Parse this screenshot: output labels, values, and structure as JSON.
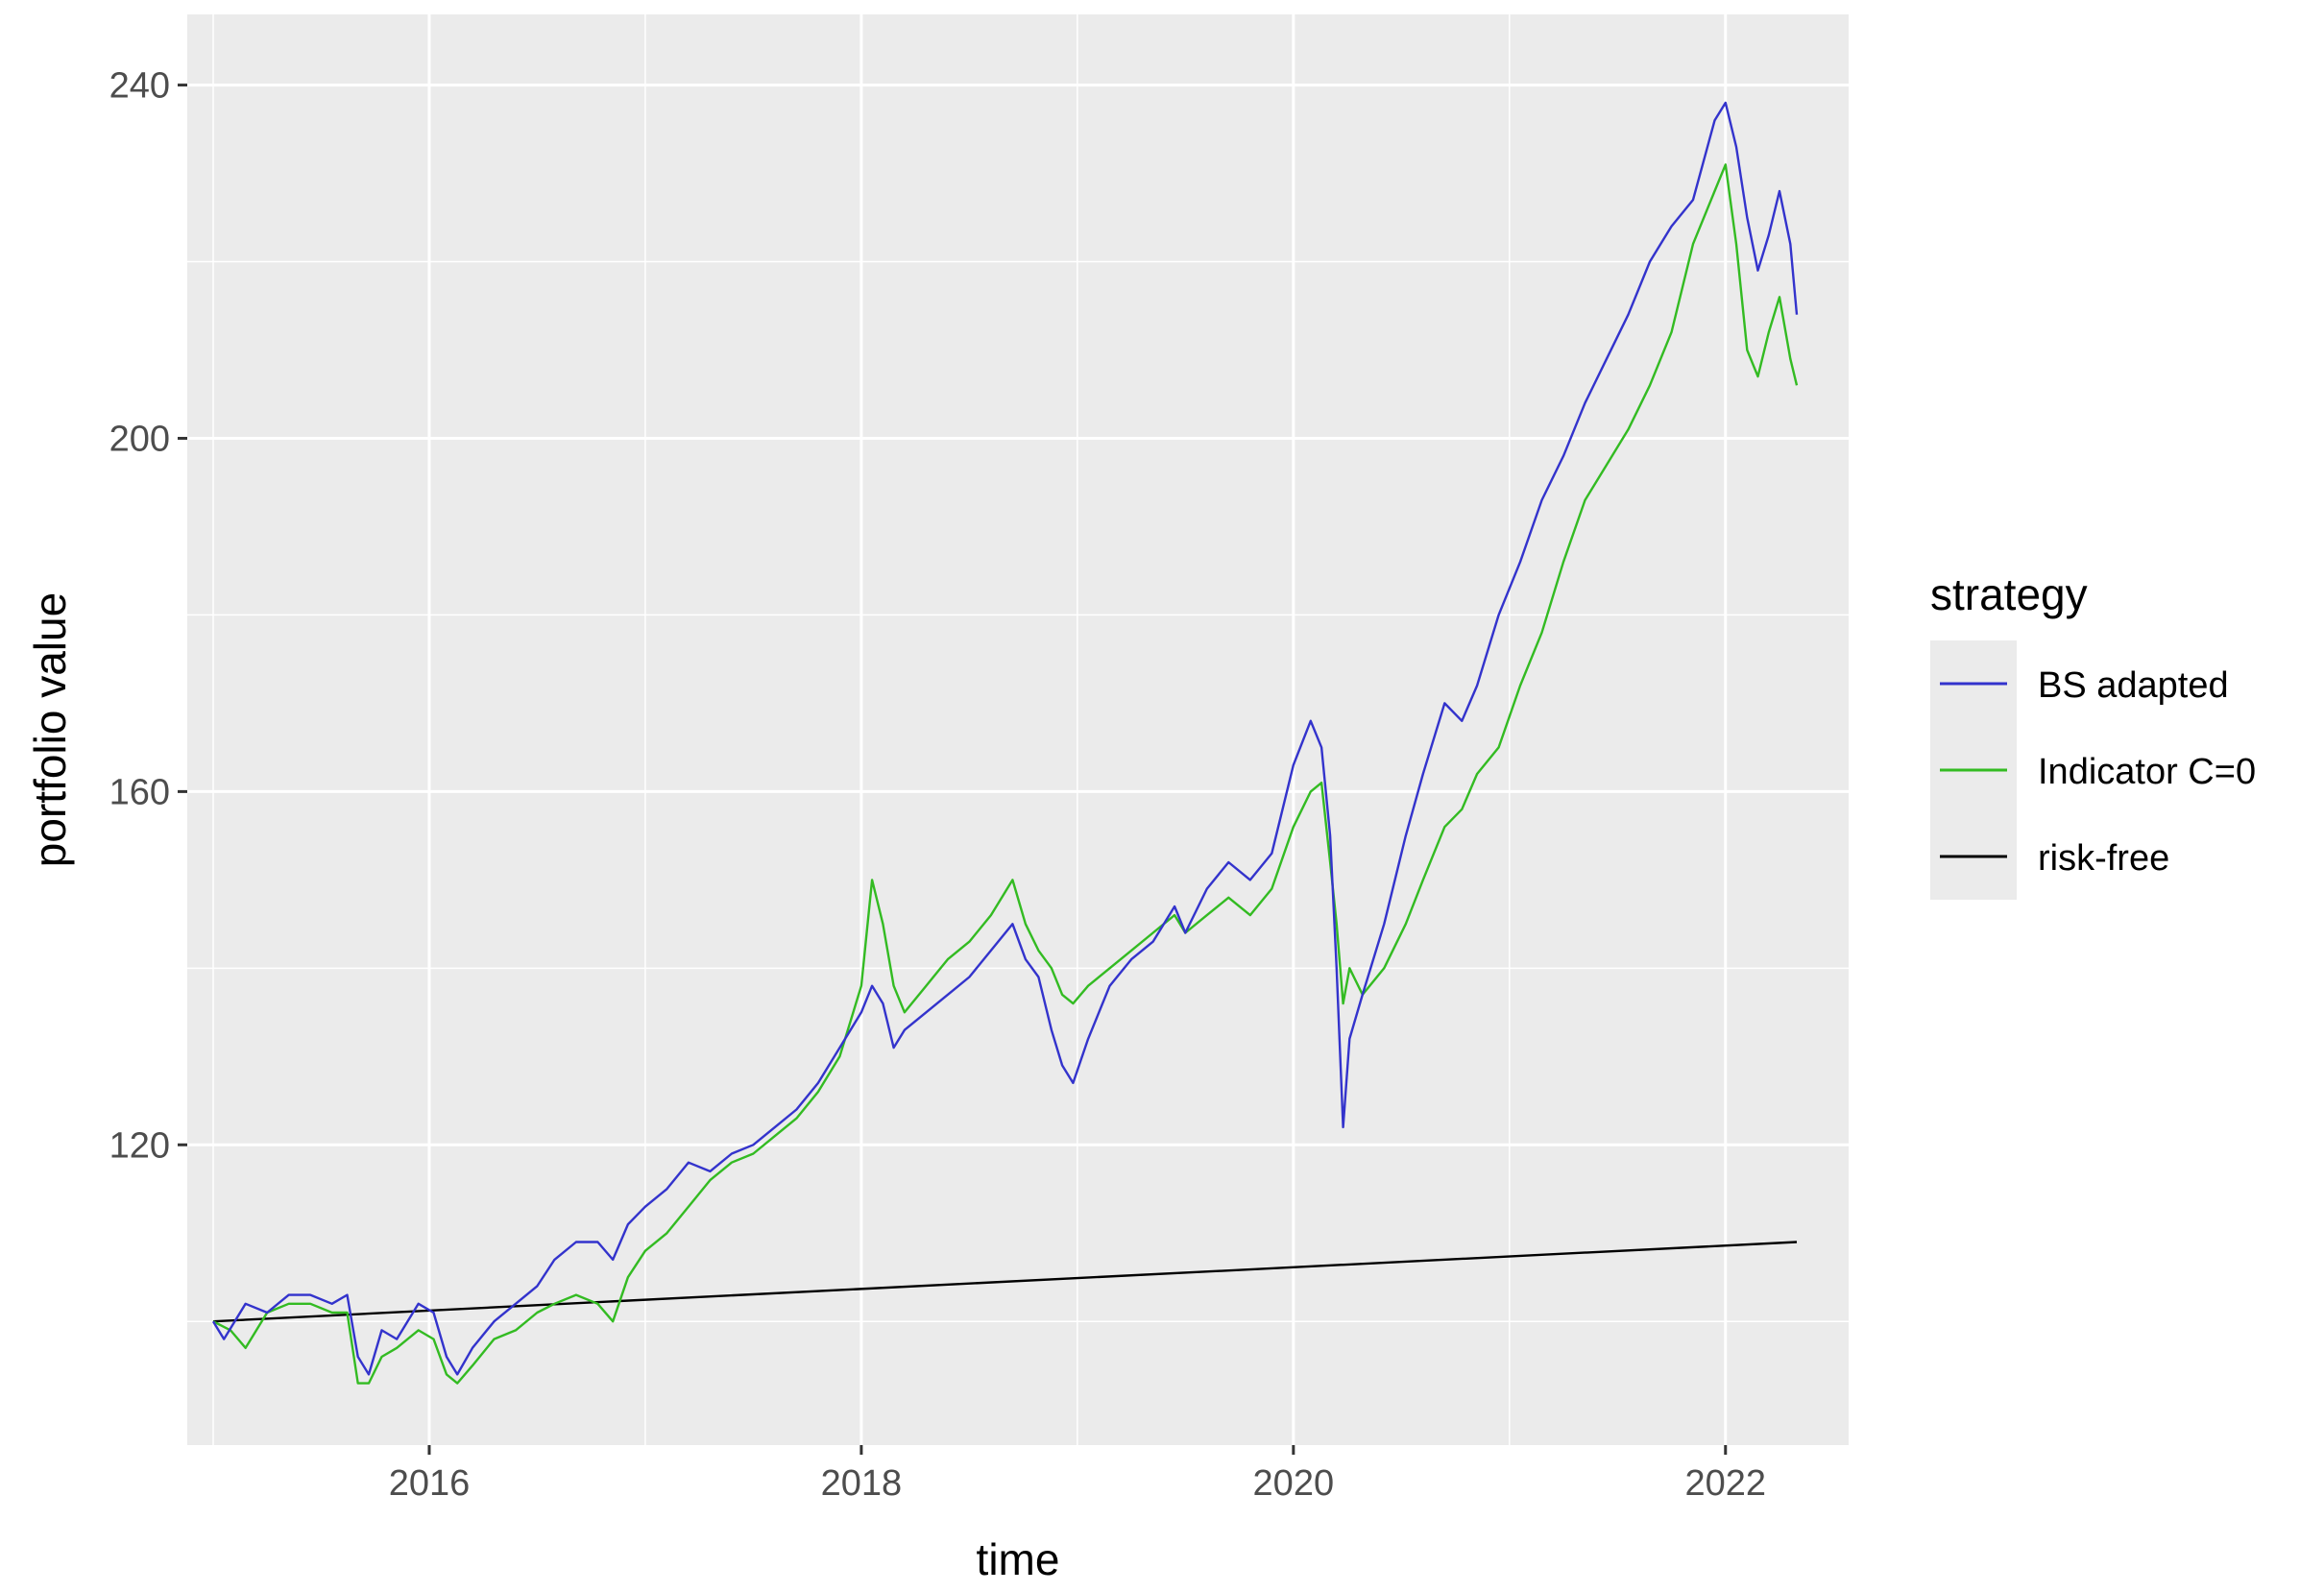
{
  "chart_data": {
    "type": "line",
    "xlabel": "time",
    "ylabel": "portfolio value",
    "xlim": [
      2014.88,
      2022.57
    ],
    "ylim": [
      86,
      248
    ],
    "x_major_ticks": [
      2016,
      2018,
      2020,
      2022
    ],
    "x_tick_labels": [
      "2016",
      "2018",
      "2020",
      "2022"
    ],
    "x_minor_ticks": [
      2015,
      2017,
      2019,
      2021
    ],
    "y_major_ticks": [
      120,
      160,
      200,
      240
    ],
    "y_tick_labels": [
      "120",
      "160",
      "200",
      "240"
    ],
    "y_minor_ticks": [
      100,
      140,
      180,
      220
    ],
    "grid": true,
    "legend": {
      "title": "strategy",
      "position": "right"
    },
    "series": [
      {
        "name": "BS adapted",
        "color": "#3333cc",
        "points": [
          [
            2015.0,
            100
          ],
          [
            2015.05,
            98
          ],
          [
            2015.15,
            102
          ],
          [
            2015.25,
            101
          ],
          [
            2015.35,
            103
          ],
          [
            2015.45,
            103
          ],
          [
            2015.55,
            102
          ],
          [
            2015.62,
            103
          ],
          [
            2015.67,
            96
          ],
          [
            2015.72,
            94
          ],
          [
            2015.78,
            99
          ],
          [
            2015.85,
            98
          ],
          [
            2015.95,
            102
          ],
          [
            2016.02,
            101
          ],
          [
            2016.08,
            96
          ],
          [
            2016.13,
            94
          ],
          [
            2016.2,
            97
          ],
          [
            2016.3,
            100
          ],
          [
            2016.4,
            102
          ],
          [
            2016.5,
            104
          ],
          [
            2016.58,
            107
          ],
          [
            2016.68,
            109
          ],
          [
            2016.78,
            109
          ],
          [
            2016.85,
            107
          ],
          [
            2016.92,
            111
          ],
          [
            2017.0,
            113
          ],
          [
            2017.1,
            115
          ],
          [
            2017.2,
            118
          ],
          [
            2017.3,
            117
          ],
          [
            2017.4,
            119
          ],
          [
            2017.5,
            120
          ],
          [
            2017.6,
            122
          ],
          [
            2017.7,
            124
          ],
          [
            2017.8,
            127
          ],
          [
            2017.9,
            131
          ],
          [
            2018.0,
            135
          ],
          [
            2018.05,
            138
          ],
          [
            2018.1,
            136
          ],
          [
            2018.15,
            131
          ],
          [
            2018.2,
            133
          ],
          [
            2018.3,
            135
          ],
          [
            2018.4,
            137
          ],
          [
            2018.5,
            139
          ],
          [
            2018.6,
            142
          ],
          [
            2018.7,
            145
          ],
          [
            2018.76,
            141
          ],
          [
            2018.82,
            139
          ],
          [
            2018.88,
            133
          ],
          [
            2018.93,
            129
          ],
          [
            2018.98,
            127
          ],
          [
            2019.05,
            132
          ],
          [
            2019.15,
            138
          ],
          [
            2019.25,
            141
          ],
          [
            2019.35,
            143
          ],
          [
            2019.45,
            147
          ],
          [
            2019.5,
            144
          ],
          [
            2019.6,
            149
          ],
          [
            2019.7,
            152
          ],
          [
            2019.8,
            150
          ],
          [
            2019.9,
            153
          ],
          [
            2020.0,
            163
          ],
          [
            2020.08,
            168
          ],
          [
            2020.13,
            165
          ],
          [
            2020.17,
            155
          ],
          [
            2020.2,
            140
          ],
          [
            2020.23,
            122
          ],
          [
            2020.26,
            132
          ],
          [
            2020.32,
            137
          ],
          [
            2020.42,
            145
          ],
          [
            2020.52,
            155
          ],
          [
            2020.6,
            162
          ],
          [
            2020.7,
            170
          ],
          [
            2020.78,
            168
          ],
          [
            2020.85,
            172
          ],
          [
            2020.95,
            180
          ],
          [
            2021.05,
            186
          ],
          [
            2021.15,
            193
          ],
          [
            2021.25,
            198
          ],
          [
            2021.35,
            204
          ],
          [
            2021.45,
            209
          ],
          [
            2021.55,
            214
          ],
          [
            2021.65,
            220
          ],
          [
            2021.75,
            224
          ],
          [
            2021.85,
            227
          ],
          [
            2021.95,
            236
          ],
          [
            2022.0,
            238
          ],
          [
            2022.05,
            233
          ],
          [
            2022.1,
            225
          ],
          [
            2022.15,
            219
          ],
          [
            2022.2,
            223
          ],
          [
            2022.25,
            228
          ],
          [
            2022.3,
            222
          ],
          [
            2022.33,
            214
          ]
        ]
      },
      {
        "name": "Indicator C=0",
        "color": "#33bb22",
        "points": [
          [
            2015.0,
            100
          ],
          [
            2015.08,
            99
          ],
          [
            2015.15,
            97
          ],
          [
            2015.25,
            101
          ],
          [
            2015.35,
            102
          ],
          [
            2015.45,
            102
          ],
          [
            2015.55,
            101
          ],
          [
            2015.62,
            101
          ],
          [
            2015.67,
            93
          ],
          [
            2015.72,
            93
          ],
          [
            2015.78,
            96
          ],
          [
            2015.85,
            97
          ],
          [
            2015.95,
            99
          ],
          [
            2016.02,
            98
          ],
          [
            2016.08,
            94
          ],
          [
            2016.13,
            93
          ],
          [
            2016.2,
            95
          ],
          [
            2016.3,
            98
          ],
          [
            2016.4,
            99
          ],
          [
            2016.5,
            101
          ],
          [
            2016.58,
            102
          ],
          [
            2016.68,
            103
          ],
          [
            2016.78,
            102
          ],
          [
            2016.85,
            100
          ],
          [
            2016.92,
            105
          ],
          [
            2017.0,
            108
          ],
          [
            2017.1,
            110
          ],
          [
            2017.2,
            113
          ],
          [
            2017.3,
            116
          ],
          [
            2017.4,
            118
          ],
          [
            2017.5,
            119
          ],
          [
            2017.6,
            121
          ],
          [
            2017.7,
            123
          ],
          [
            2017.8,
            126
          ],
          [
            2017.9,
            130
          ],
          [
            2018.0,
            138
          ],
          [
            2018.05,
            150
          ],
          [
            2018.1,
            145
          ],
          [
            2018.15,
            138
          ],
          [
            2018.2,
            135
          ],
          [
            2018.3,
            138
          ],
          [
            2018.4,
            141
          ],
          [
            2018.5,
            143
          ],
          [
            2018.6,
            146
          ],
          [
            2018.7,
            150
          ],
          [
            2018.76,
            145
          ],
          [
            2018.82,
            142
          ],
          [
            2018.88,
            140
          ],
          [
            2018.93,
            137
          ],
          [
            2018.98,
            136
          ],
          [
            2019.05,
            138
          ],
          [
            2019.15,
            140
          ],
          [
            2019.25,
            142
          ],
          [
            2019.35,
            144
          ],
          [
            2019.45,
            146
          ],
          [
            2019.5,
            144
          ],
          [
            2019.6,
            146
          ],
          [
            2019.7,
            148
          ],
          [
            2019.8,
            146
          ],
          [
            2019.9,
            149
          ],
          [
            2020.0,
            156
          ],
          [
            2020.08,
            160
          ],
          [
            2020.13,
            161
          ],
          [
            2020.17,
            152
          ],
          [
            2020.2,
            145
          ],
          [
            2020.23,
            136
          ],
          [
            2020.26,
            140
          ],
          [
            2020.32,
            137
          ],
          [
            2020.42,
            140
          ],
          [
            2020.52,
            145
          ],
          [
            2020.6,
            150
          ],
          [
            2020.7,
            156
          ],
          [
            2020.78,
            158
          ],
          [
            2020.85,
            162
          ],
          [
            2020.95,
            165
          ],
          [
            2021.05,
            172
          ],
          [
            2021.15,
            178
          ],
          [
            2021.25,
            186
          ],
          [
            2021.35,
            193
          ],
          [
            2021.45,
            197
          ],
          [
            2021.55,
            201
          ],
          [
            2021.65,
            206
          ],
          [
            2021.75,
            212
          ],
          [
            2021.85,
            222
          ],
          [
            2021.95,
            228
          ],
          [
            2022.0,
            231
          ],
          [
            2022.05,
            222
          ],
          [
            2022.1,
            210
          ],
          [
            2022.15,
            207
          ],
          [
            2022.2,
            212
          ],
          [
            2022.25,
            216
          ],
          [
            2022.3,
            209
          ],
          [
            2022.33,
            206
          ]
        ]
      },
      {
        "name": "risk-free",
        "color": "#000000",
        "points": [
          [
            2015.0,
            100
          ],
          [
            2022.33,
            109
          ]
        ]
      }
    ]
  }
}
